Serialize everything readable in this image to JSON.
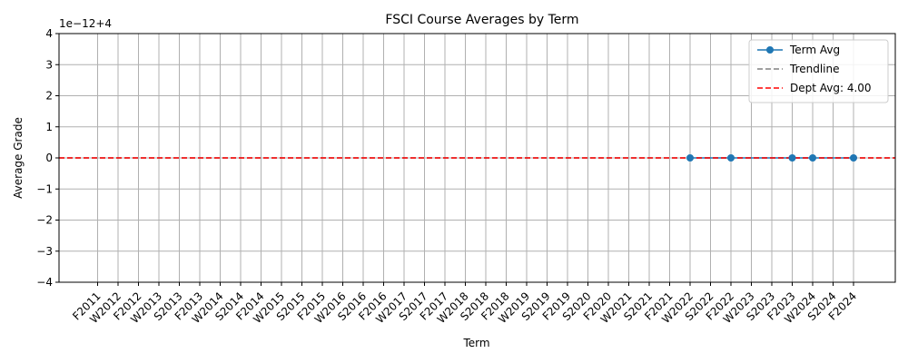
{
  "chart_data": {
    "type": "line",
    "title": "FSCI Course Averages by Term",
    "xlabel": "Term",
    "ylabel": "Average Grade",
    "offset_label": "1e−12+4",
    "categories": [
      "F2011",
      "W2012",
      "F2012",
      "W2013",
      "S2013",
      "F2013",
      "W2014",
      "S2014",
      "F2014",
      "W2015",
      "S2015",
      "F2015",
      "W2016",
      "S2016",
      "F2016",
      "W2017",
      "S2017",
      "F2017",
      "W2018",
      "S2018",
      "F2018",
      "W2019",
      "S2019",
      "F2019",
      "S2020",
      "F2020",
      "W2021",
      "S2021",
      "F2021",
      "W2022",
      "S2022",
      "F2022",
      "W2023",
      "S2023",
      "F2023",
      "W2024",
      "S2024",
      "F2024"
    ],
    "y_ticks": [
      -4,
      -3,
      -2,
      -1,
      0,
      1,
      2,
      3,
      4
    ],
    "y_tick_labels": [
      "−4",
      "−3",
      "−2",
      "−1",
      "0",
      "1",
      "2",
      "3",
      "4"
    ],
    "ylim": [
      -4,
      4
    ],
    "grid": true,
    "legend_position": "top-right",
    "series": [
      {
        "name": "Term Avg",
        "color": "#1f77b4",
        "points": [
          {
            "x": "W2022",
            "y": 0
          },
          {
            "x": "F2022",
            "y": 0
          },
          {
            "x": "F2023",
            "y": 0
          },
          {
            "x": "W2024",
            "y": 0
          },
          {
            "x": "F2024",
            "y": 0
          }
        ]
      },
      {
        "name": "Trendline",
        "color": "#808080",
        "style": "dashed",
        "y": 0
      },
      {
        "name": "Dept Avg: 4.00",
        "color": "#ff0000",
        "style": "dashed",
        "y": 0
      }
    ]
  }
}
